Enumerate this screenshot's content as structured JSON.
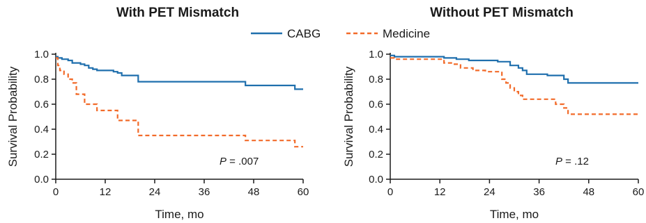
{
  "legend": [
    {
      "name": "CABG",
      "color": "#1f6fad",
      "dash": "solid"
    },
    {
      "name": "Medicine",
      "color": "#f26b2a",
      "dash": "dashed"
    }
  ],
  "chart_data": [
    {
      "type": "line",
      "step": true,
      "title": "With PET Mismatch",
      "xlabel": "Time, mo",
      "ylabel": "Survival Probability",
      "xlim": [
        0,
        60
      ],
      "ylim": [
        0,
        1.0
      ],
      "xticks": [
        "0",
        "12",
        "24",
        "36",
        "48",
        "60"
      ],
      "yticks": [
        "0.0",
        "0.2",
        "0.4",
        "0.6",
        "0.8",
        "1.0"
      ],
      "annotation": {
        "p_symbol": "P",
        "p_text": " = .007"
      },
      "series": [
        {
          "name": "CABG",
          "color": "#1f6fad",
          "x": [
            0,
            0.5,
            1.5,
            3,
            4,
            6,
            7,
            8,
            9,
            10,
            12,
            14,
            15,
            16,
            20,
            46,
            58,
            60
          ],
          "y": [
            0.98,
            0.97,
            0.96,
            0.95,
            0.93,
            0.92,
            0.91,
            0.89,
            0.88,
            0.87,
            0.87,
            0.86,
            0.85,
            0.83,
            0.78,
            0.75,
            0.72,
            0.72
          ]
        },
        {
          "name": "Medicine",
          "color": "#f26b2a",
          "x": [
            0,
            0.5,
            1,
            2,
            3,
            4,
            5,
            7,
            10,
            15,
            20,
            46,
            58,
            60
          ],
          "y": [
            0.97,
            0.91,
            0.87,
            0.84,
            0.8,
            0.77,
            0.68,
            0.6,
            0.55,
            0.47,
            0.35,
            0.31,
            0.26,
            0.26
          ]
        }
      ]
    },
    {
      "type": "line",
      "step": true,
      "title": "Without PET Mismatch",
      "xlabel": "Time, mo",
      "ylabel": "Survival Probability",
      "xlim": [
        0,
        60
      ],
      "ylim": [
        0,
        1.0
      ],
      "xticks": [
        "0",
        "12",
        "24",
        "36",
        "48",
        "60"
      ],
      "yticks": [
        "0.0",
        "0.2",
        "0.4",
        "0.6",
        "0.8",
        "1.0"
      ],
      "annotation": {
        "p_symbol": "P",
        "p_text": " = .12"
      },
      "series": [
        {
          "name": "CABG",
          "color": "#1f6fad",
          "x": [
            0,
            1,
            13,
            16,
            19,
            26,
            29,
            31,
            32,
            33,
            36,
            38,
            42,
            43,
            60
          ],
          "y": [
            0.99,
            0.98,
            0.97,
            0.96,
            0.95,
            0.94,
            0.91,
            0.89,
            0.87,
            0.84,
            0.84,
            0.83,
            0.8,
            0.77,
            0.77
          ]
        },
        {
          "name": "Medicine",
          "color": "#f26b2a",
          "x": [
            0,
            1,
            13,
            15,
            17,
            20,
            23,
            27,
            28,
            29,
            30,
            31,
            32,
            34,
            40,
            42,
            43,
            60
          ],
          "y": [
            0.97,
            0.96,
            0.93,
            0.92,
            0.89,
            0.87,
            0.86,
            0.8,
            0.77,
            0.73,
            0.7,
            0.67,
            0.64,
            0.64,
            0.6,
            0.57,
            0.52,
            0.52
          ]
        }
      ]
    }
  ]
}
